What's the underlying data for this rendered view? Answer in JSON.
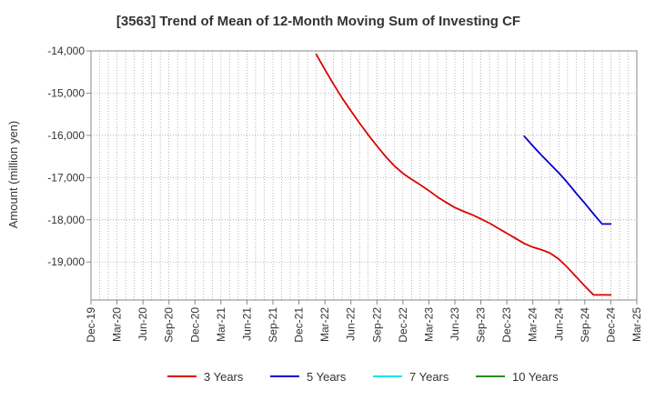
{
  "chart_data": {
    "type": "line",
    "title": "[3563]  Trend of Mean of 12-Month Moving Sum of Investing CF",
    "ylabel": "Amount (million yen)",
    "xlabel": "",
    "ylim": [
      -19900,
      -14000
    ],
    "yticks": [
      {
        "value": -14000,
        "label": "-14,000"
      },
      {
        "value": -15000,
        "label": "-15,000"
      },
      {
        "value": -16000,
        "label": "-16,000"
      },
      {
        "value": -17000,
        "label": "-17,000"
      },
      {
        "value": -18000,
        "label": "-18,000"
      },
      {
        "value": -19000,
        "label": "-19,000"
      }
    ],
    "categories": [
      "Dec-19",
      "Mar-20",
      "Jun-20",
      "Sep-20",
      "Dec-20",
      "Mar-21",
      "Jun-21",
      "Sep-21",
      "Dec-21",
      "Mar-22",
      "Jun-22",
      "Sep-22",
      "Dec-22",
      "Mar-23",
      "Jun-23",
      "Sep-23",
      "Dec-23",
      "Mar-24",
      "Jun-24",
      "Sep-24",
      "Dec-24",
      "Mar-25"
    ],
    "grid": true,
    "legend_position": "bottom",
    "series": [
      {
        "name": "3 Years",
        "color": "#dd0000",
        "x": [
          "Feb-22",
          "Mar-22",
          "Apr-22",
          "May-22",
          "Jun-22",
          "Jul-22",
          "Aug-22",
          "Sep-22",
          "Oct-22",
          "Nov-22",
          "Dec-22",
          "Jan-23",
          "Feb-23",
          "Mar-23",
          "Apr-23",
          "May-23",
          "Jun-23",
          "Jul-23",
          "Aug-23",
          "Sep-23",
          "Oct-23",
          "Nov-23",
          "Dec-23",
          "Jan-24",
          "Feb-24",
          "Mar-24",
          "Apr-24",
          "May-24",
          "Jun-24",
          "Jul-24",
          "Aug-24",
          "Sep-24",
          "Oct-24",
          "Nov-24",
          "Dec-24"
        ],
        "values": [
          -14080,
          -14440,
          -14790,
          -15120,
          -15420,
          -15710,
          -15990,
          -16250,
          -16500,
          -16720,
          -16900,
          -17040,
          -17170,
          -17310,
          -17460,
          -17590,
          -17710,
          -17800,
          -17880,
          -17980,
          -18080,
          -18200,
          -18320,
          -18440,
          -18560,
          -18650,
          -18710,
          -18790,
          -18930,
          -19130,
          -19350,
          -19570,
          -19780,
          -19780,
          -19780
        ]
      },
      {
        "name": "5 Years",
        "color": "#0000cc",
        "x": [
          "Feb-24",
          "Mar-24",
          "Apr-24",
          "May-24",
          "Jun-24",
          "Jul-24",
          "Aug-24",
          "Sep-24",
          "Oct-24",
          "Nov-24",
          "Dec-24"
        ],
        "values": [
          -16020,
          -16250,
          -16470,
          -16680,
          -16890,
          -17120,
          -17370,
          -17610,
          -17860,
          -18100,
          -18100
        ]
      },
      {
        "name": "7 Years",
        "color": "#00e5ee",
        "x": [],
        "values": []
      },
      {
        "name": "10 Years",
        "color": "#228b22",
        "x": [],
        "values": []
      }
    ]
  }
}
